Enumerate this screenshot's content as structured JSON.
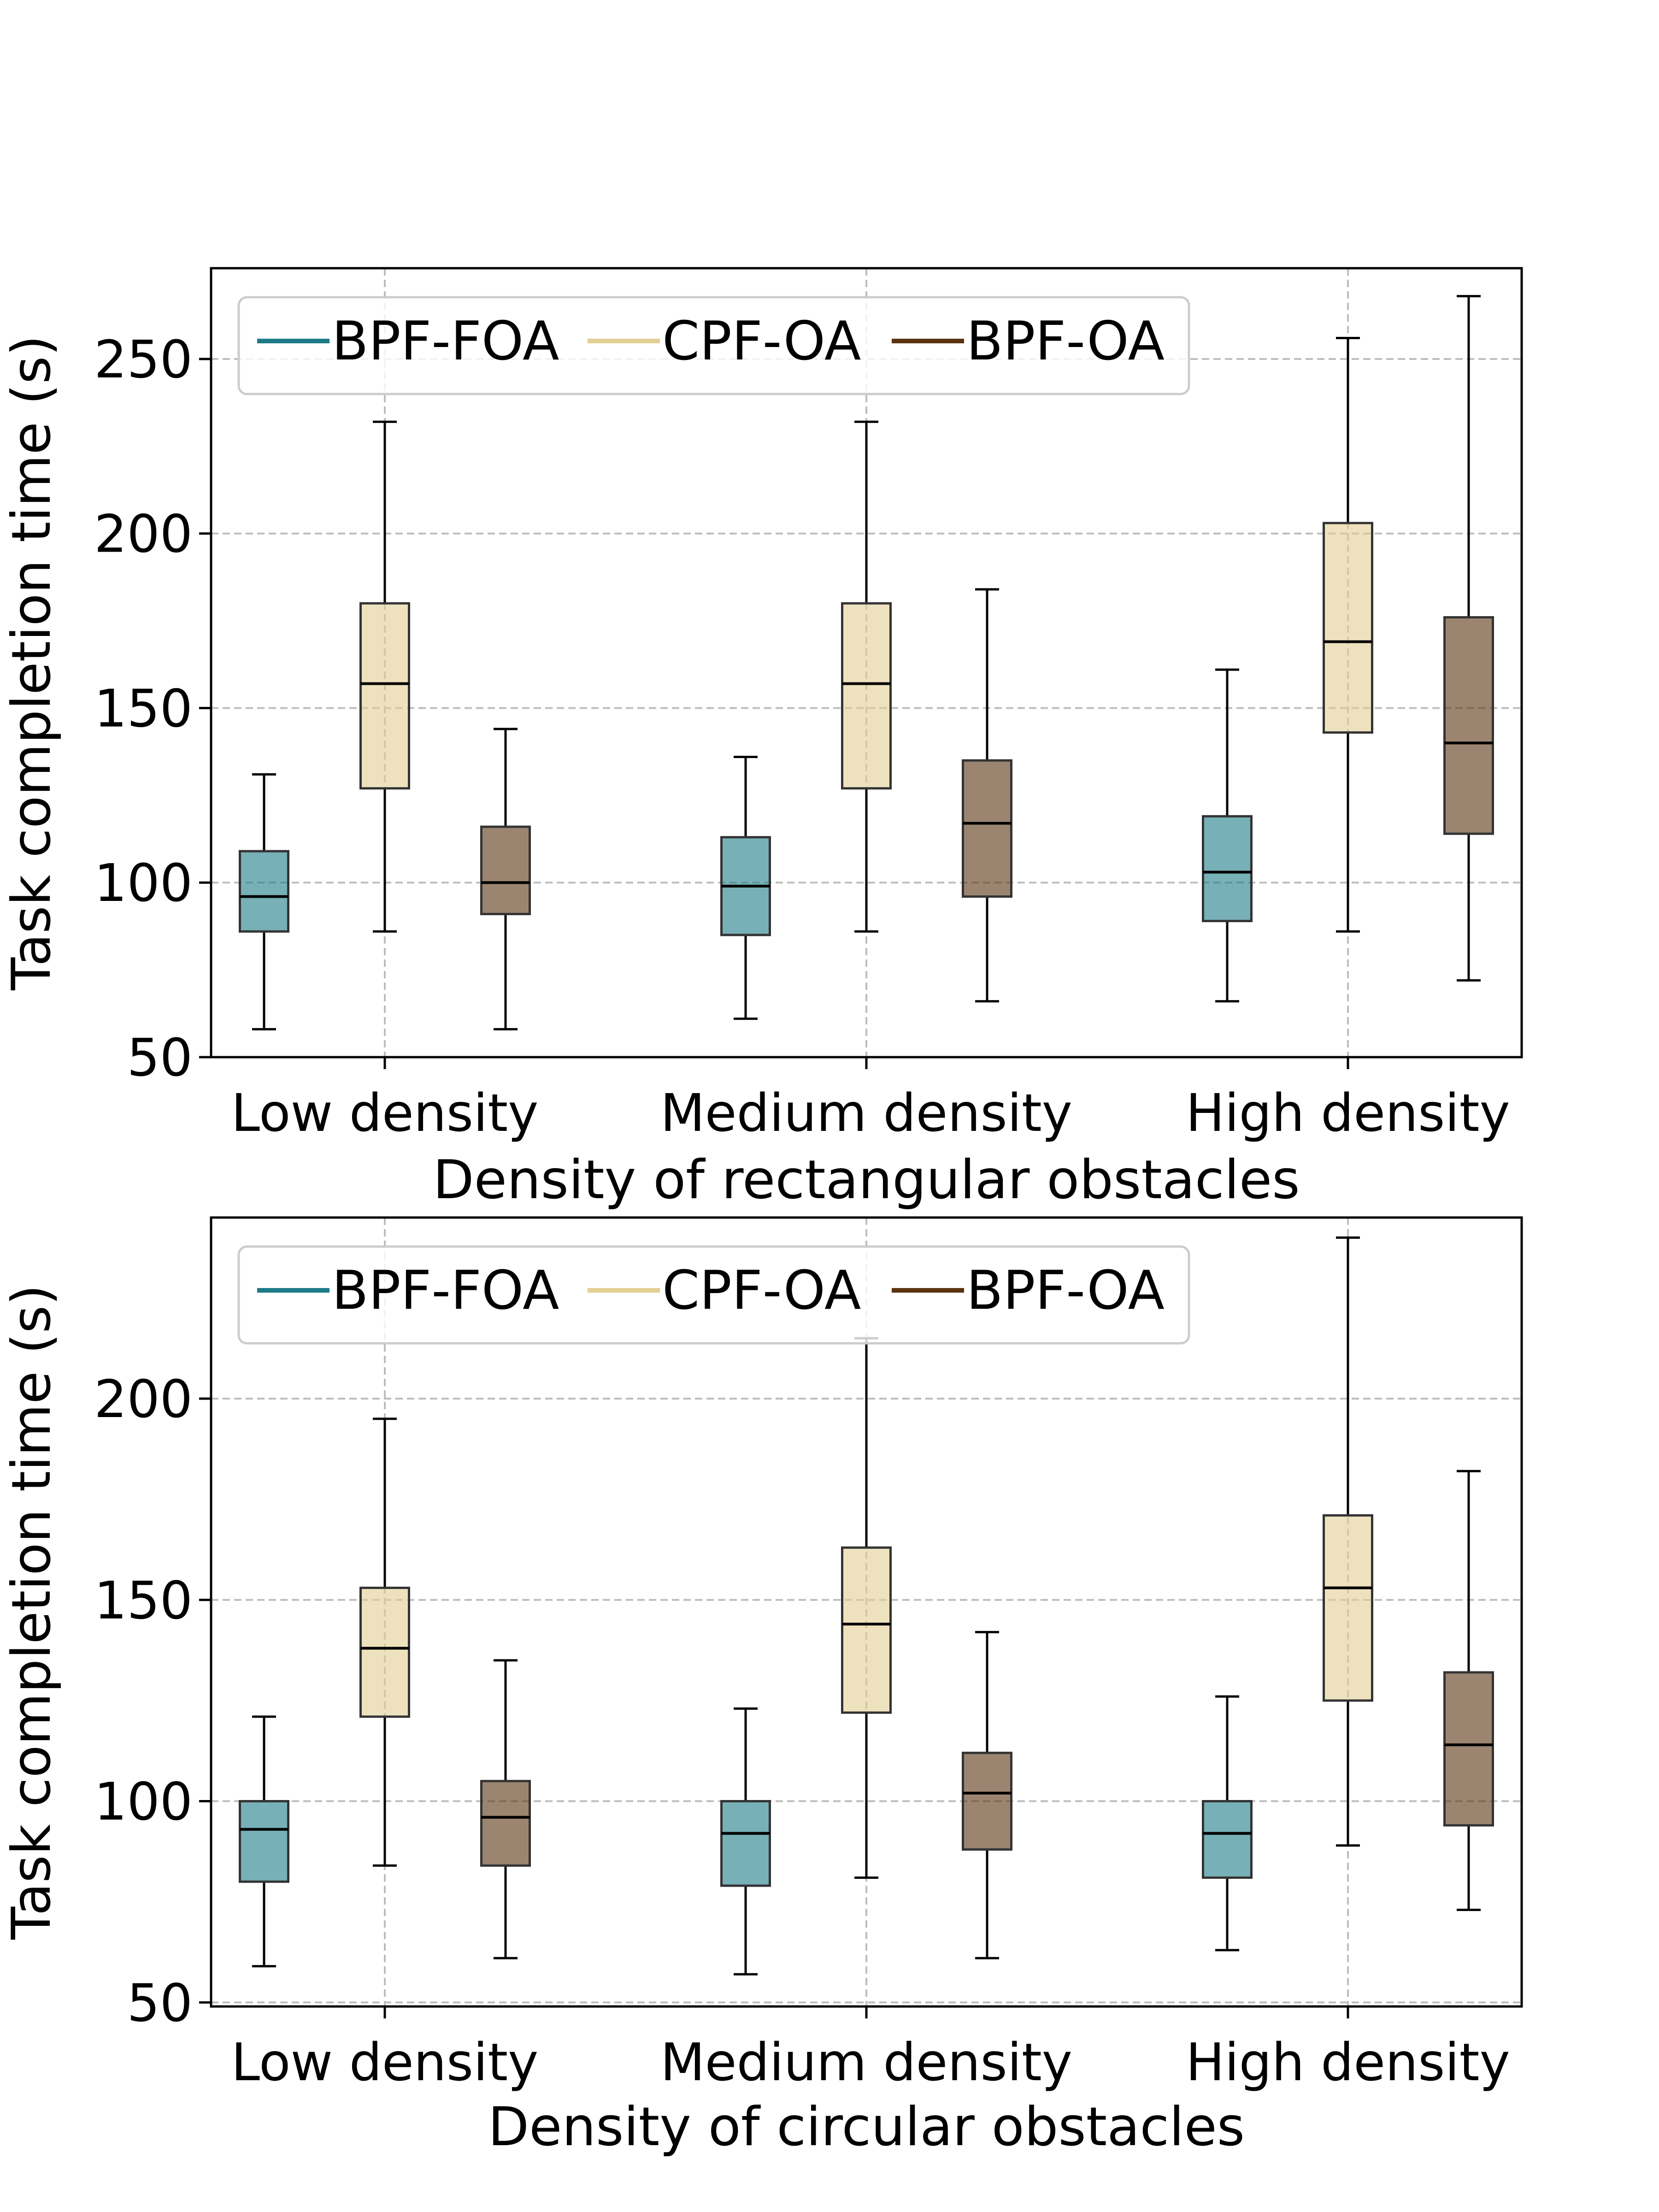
{
  "colors": {
    "BPF-FOA": "#1c7b86",
    "CPF-OA": "#e2cf93",
    "BPF-OA": "#5a3410",
    "grid": "#bdbdbd",
    "whisker": "#000000"
  },
  "chart_data": [
    {
      "type": "box",
      "xlabel": "Density of rectangular obstacles",
      "ylabel": "Task completion time (s)",
      "ylim": [
        50,
        276
      ],
      "yticks": [
        50,
        100,
        150,
        200,
        250
      ],
      "grid": true,
      "legend_placement": "top-left",
      "categories": [
        "Low density",
        "Medium density",
        "High density"
      ],
      "series": [
        {
          "name": "BPF-FOA",
          "boxes": [
            {
              "min": 58,
              "q1": 86,
              "median": 96,
              "q3": 109,
              "max": 131
            },
            {
              "min": 61,
              "q1": 85,
              "median": 99,
              "q3": 113,
              "max": 136
            },
            {
              "min": 66,
              "q1": 89,
              "median": 103,
              "q3": 119,
              "max": 161
            }
          ]
        },
        {
          "name": "CPF-OA",
          "boxes": [
            {
              "min": 86,
              "q1": 127,
              "median": 157,
              "q3": 180,
              "max": 232
            },
            {
              "min": 86,
              "q1": 127,
              "median": 157,
              "q3": 180,
              "max": 232
            },
            {
              "min": 86,
              "q1": 143,
              "median": 169,
              "q3": 203,
              "max": 256
            }
          ]
        },
        {
          "name": "BPF-OA",
          "boxes": [
            {
              "min": 58,
              "q1": 91,
              "median": 100,
              "q3": 116,
              "max": 144
            },
            {
              "min": 66,
              "q1": 96,
              "median": 117,
              "q3": 135,
              "max": 184
            },
            {
              "min": 72,
              "q1": 114,
              "median": 140,
              "q3": 176,
              "max": 268
            }
          ]
        }
      ]
    },
    {
      "type": "box",
      "xlabel": "Density of circular obstacles",
      "ylabel": "Task completion time (s)",
      "ylim": [
        49,
        245
      ],
      "yticks": [
        50,
        100,
        150,
        200
      ],
      "grid": true,
      "legend_placement": "top-left",
      "categories": [
        "Low density",
        "Medium density",
        "High density"
      ],
      "series": [
        {
          "name": "BPF-FOA",
          "boxes": [
            {
              "min": 59,
              "q1": 80,
              "median": 93,
              "q3": 100,
              "max": 121
            },
            {
              "min": 57,
              "q1": 79,
              "median": 92,
              "q3": 100,
              "max": 123
            },
            {
              "min": 63,
              "q1": 81,
              "median": 92,
              "q3": 100,
              "max": 126
            }
          ]
        },
        {
          "name": "CPF-OA",
          "boxes": [
            {
              "min": 84,
              "q1": 121,
              "median": 138,
              "q3": 153,
              "max": 195
            },
            {
              "min": 81,
              "q1": 122,
              "median": 144,
              "q3": 163,
              "max": 215
            },
            {
              "min": 89,
              "q1": 125,
              "median": 153,
              "q3": 171,
              "max": 240
            }
          ]
        },
        {
          "name": "BPF-OA",
          "boxes": [
            {
              "min": 61,
              "q1": 84,
              "median": 96,
              "q3": 105,
              "max": 135
            },
            {
              "min": 61,
              "q1": 88,
              "median": 102,
              "q3": 112,
              "max": 142
            },
            {
              "min": 73,
              "q1": 94,
              "median": 114,
              "q3": 132,
              "max": 182
            }
          ]
        }
      ]
    }
  ]
}
